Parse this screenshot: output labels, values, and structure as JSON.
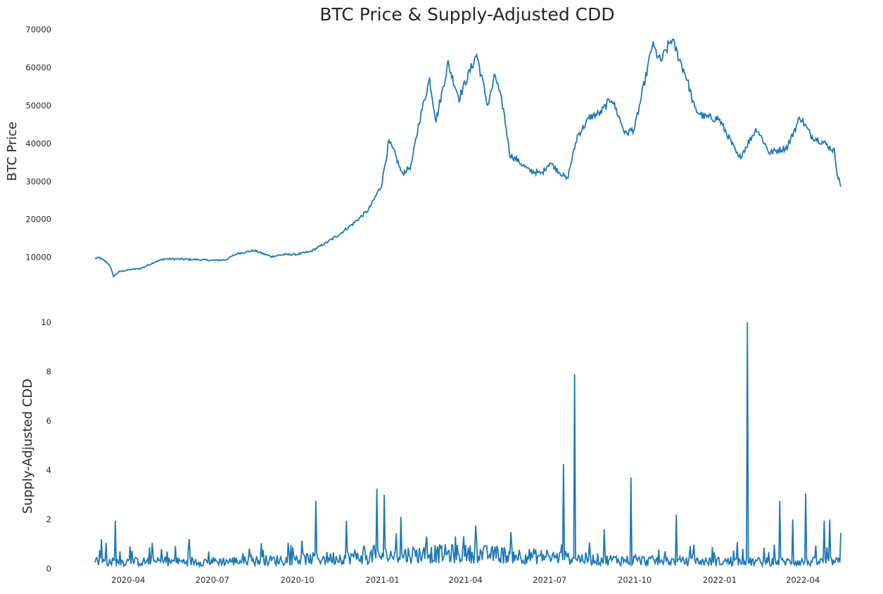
{
  "title": "BTC Price & Supply-Adjusted CDD",
  "line_color": "#1f77b4",
  "chart_data": [
    {
      "type": "line",
      "panel": "top",
      "ylabel": "BTC  Price",
      "xlim": [
        "2020-02-25",
        "2022-05-12"
      ],
      "ylim": [
        4000,
        70000
      ],
      "yticks": [
        10000,
        20000,
        30000,
        40000,
        50000,
        60000,
        70000
      ],
      "grid": false,
      "series": [
        {
          "x": [
            "2020-02-25",
            "2020-03-01",
            "2020-03-08",
            "2020-03-12",
            "2020-03-16",
            "2020-03-22",
            "2020-04-01",
            "2020-04-15",
            "2020-04-30",
            "2020-05-10",
            "2020-06-01",
            "2020-06-15",
            "2020-07-01",
            "2020-07-15",
            "2020-07-28",
            "2020-08-15",
            "2020-09-03",
            "2020-09-15",
            "2020-10-01",
            "2020-10-15",
            "2020-11-01",
            "2020-11-15",
            "2020-12-01",
            "2020-12-17",
            "2020-12-31",
            "2021-01-08",
            "2021-01-15",
            "2021-01-22",
            "2021-02-01",
            "2021-02-10",
            "2021-02-21",
            "2021-02-28",
            "2021-03-13",
            "2021-03-25",
            "2021-04-13",
            "2021-04-25",
            "2021-05-03",
            "2021-05-12",
            "2021-05-19",
            "2021-05-25",
            "2021-06-08",
            "2021-06-22",
            "2021-07-01",
            "2021-07-20",
            "2021-07-31",
            "2021-08-14",
            "2021-08-25",
            "2021-09-06",
            "2021-09-21",
            "2021-10-01",
            "2021-10-16",
            "2021-10-20",
            "2021-10-29",
            "2021-11-10",
            "2021-11-26",
            "2021-12-05",
            "2021-12-15",
            "2021-12-31",
            "2022-01-10",
            "2022-01-22",
            "2022-02-10",
            "2022-02-24",
            "2022-03-15",
            "2022-03-29",
            "2022-04-10",
            "2022-04-25",
            "2022-05-05",
            "2022-05-09",
            "2022-05-12"
          ],
          "y": [
            9700,
            9900,
            8800,
            7900,
            5000,
            6200,
            6700,
            7100,
            8800,
            9600,
            9500,
            9400,
            9200,
            9300,
            11000,
            11800,
            10200,
            10700,
            10800,
            11500,
            13800,
            16000,
            19000,
            22500,
            29000,
            40500,
            37000,
            32000,
            34000,
            46000,
            57000,
            46000,
            61000,
            52000,
            63500,
            50000,
            58000,
            49000,
            37000,
            36000,
            33000,
            32000,
            35000,
            30500,
            42000,
            47000,
            48000,
            52000,
            42500,
            44000,
            61000,
            66000,
            61500,
            67500,
            57500,
            49000,
            47000,
            46500,
            42000,
            36000,
            44000,
            37500,
            39000,
            47000,
            42000,
            40000,
            38000,
            31000,
            29000
          ]
        }
      ]
    },
    {
      "type": "line",
      "panel": "bottom",
      "ylabel": "Supply-Adjusted CDD",
      "xlim": [
        "2020-02-25",
        "2022-05-12"
      ],
      "ylim": [
        0,
        10
      ],
      "yticks": [
        0,
        2,
        4,
        6,
        8,
        10
      ],
      "xticks": [
        "2020-04",
        "2020-07",
        "2020-10",
        "2021-01",
        "2021-04",
        "2021-07",
        "2021-10",
        "2022-01",
        "2022-04"
      ],
      "grid": false,
      "series": [
        {
          "baseline": 0.35,
          "spikes": [
            {
              "x": "2020-03-03",
              "y": 1.2
            },
            {
              "x": "2020-03-08",
              "y": 1.05
            },
            {
              "x": "2020-03-18",
              "y": 1.95
            },
            {
              "x": "2020-04-27",
              "y": 1.05
            },
            {
              "x": "2020-06-06",
              "y": 1.2
            },
            {
              "x": "2020-10-21",
              "y": 2.75
            },
            {
              "x": "2020-11-23",
              "y": 1.95
            },
            {
              "x": "2020-12-26",
              "y": 3.25
            },
            {
              "x": "2021-01-03",
              "y": 3.0
            },
            {
              "x": "2021-01-21",
              "y": 2.1
            },
            {
              "x": "2021-04-12",
              "y": 1.75
            },
            {
              "x": "2021-07-16",
              "y": 4.25
            },
            {
              "x": "2021-07-28",
              "y": 7.9
            },
            {
              "x": "2021-08-29",
              "y": 1.6
            },
            {
              "x": "2021-09-27",
              "y": 3.7
            },
            {
              "x": "2021-11-15",
              "y": 2.2
            },
            {
              "x": "2022-01-31",
              "y": 10.0
            },
            {
              "x": "2022-03-07",
              "y": 2.75
            },
            {
              "x": "2022-03-21",
              "y": 2.0
            },
            {
              "x": "2022-04-04",
              "y": 3.05
            },
            {
              "x": "2022-04-24",
              "y": 1.95
            },
            {
              "x": "2022-04-30",
              "y": 2.0
            },
            {
              "x": "2022-05-12",
              "y": 1.45
            }
          ]
        }
      ]
    }
  ]
}
